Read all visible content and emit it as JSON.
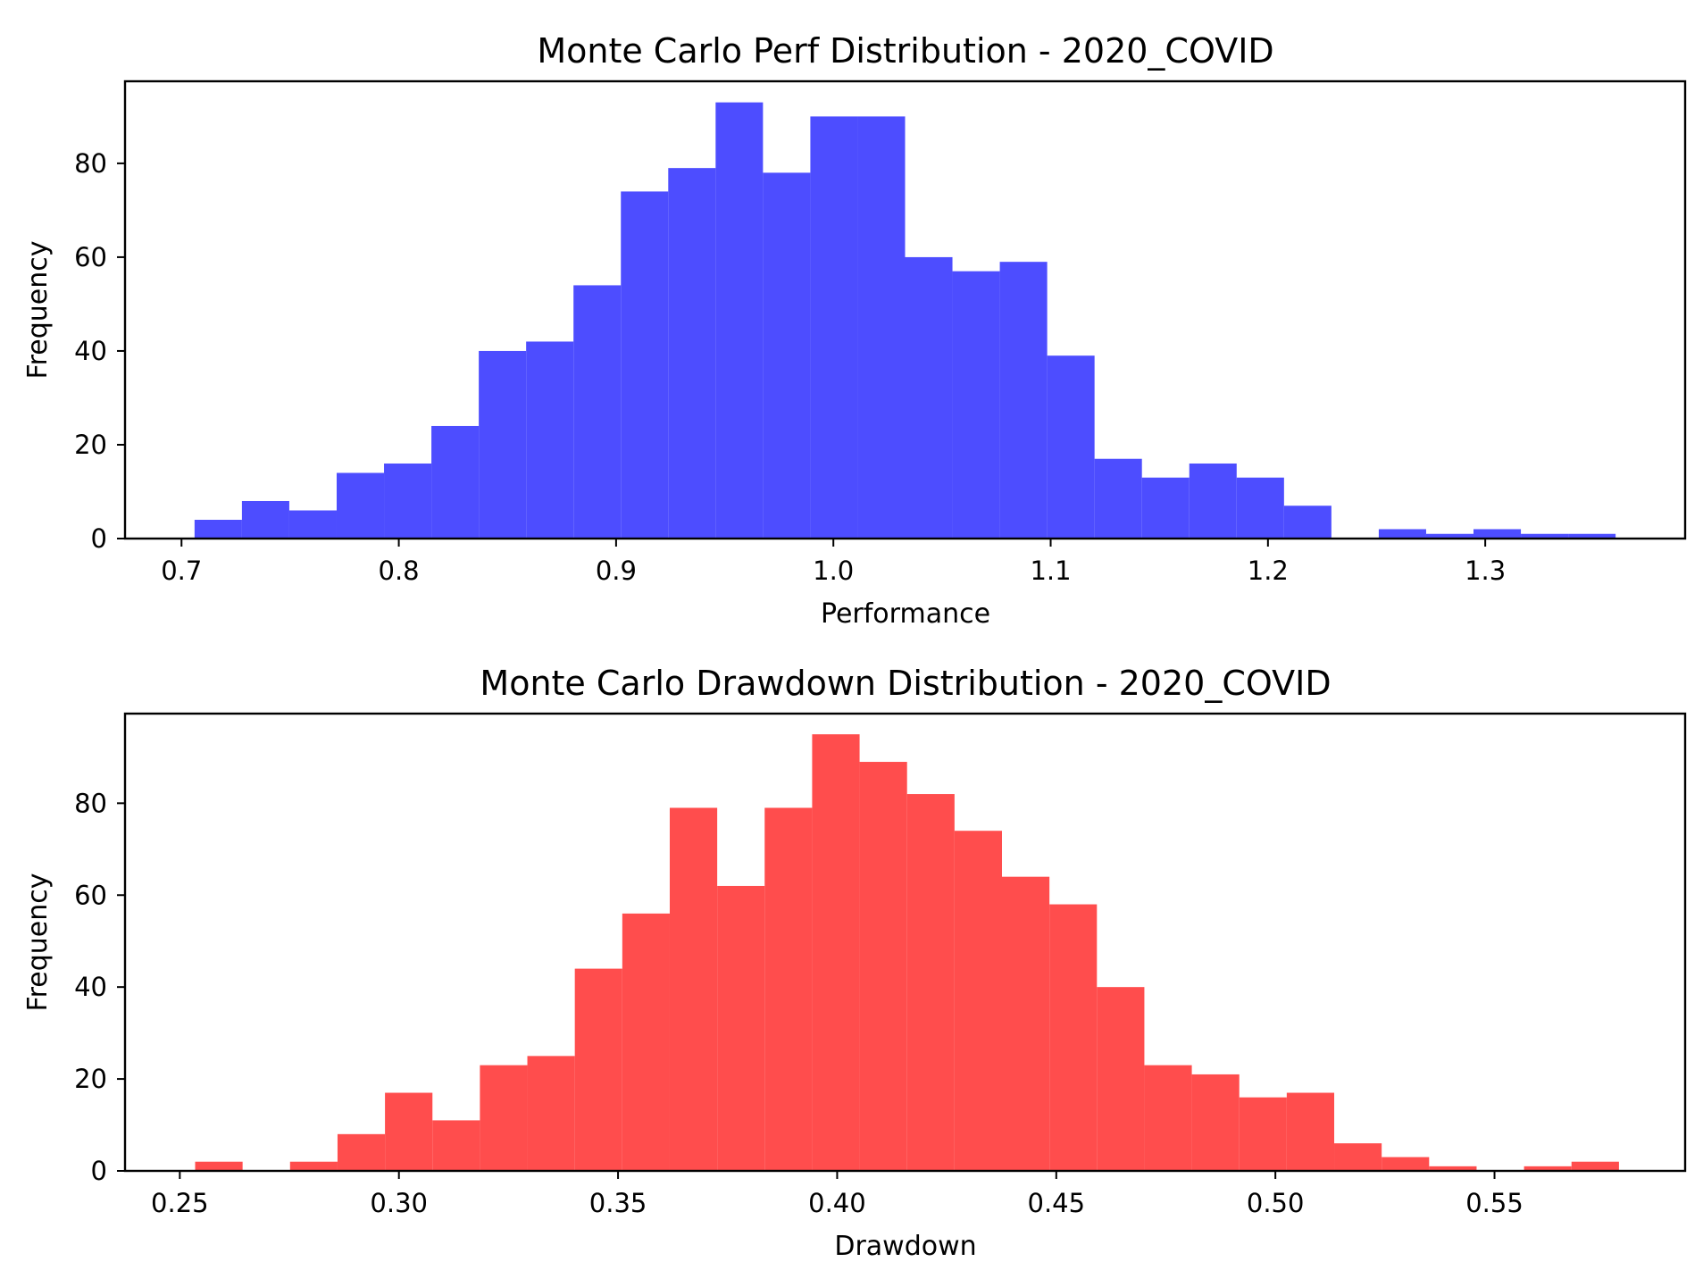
{
  "chart_data": [
    {
      "type": "bar",
      "subtype": "histogram",
      "title": "Monte Carlo Perf Distribution - 2020_COVID",
      "xlabel": "Performance",
      "ylabel": "Frequency",
      "color": "#4d4dff",
      "bin_start": 0.706,
      "bin_width": 0.0218,
      "xlim": [
        0.674,
        1.392
      ],
      "ylim": [
        0,
        97.5
      ],
      "xticks": [
        0.7,
        0.8,
        0.9,
        1.0,
        1.1,
        1.2,
        1.3
      ],
      "xtick_labels": [
        "0.7",
        "0.8",
        "0.9",
        "1.0",
        "1.1",
        "1.2",
        "1.3"
      ],
      "yticks": [
        0,
        20,
        40,
        60,
        80
      ],
      "ytick_labels": [
        "0",
        "20",
        "40",
        "60",
        "80"
      ],
      "values": [
        4,
        8,
        6,
        14,
        16,
        24,
        40,
        42,
        54,
        74,
        79,
        93,
        78,
        90,
        90,
        60,
        57,
        59,
        39,
        17,
        13,
        16,
        13,
        7,
        0,
        2,
        1,
        2,
        1,
        1
      ],
      "grid": false,
      "legend": "none"
    },
    {
      "type": "bar",
      "subtype": "histogram",
      "title": "Monte Carlo Drawdown Distribution - 2020_COVID",
      "xlabel": "Drawdown",
      "ylabel": "Frequency",
      "color": "#ff4d4d",
      "bin_start": 0.2535,
      "bin_width": 0.01083,
      "xlim": [
        0.2375,
        0.5935
      ],
      "ylim": [
        0,
        99.5
      ],
      "xticks": [
        0.25,
        0.3,
        0.35,
        0.4,
        0.45,
        0.5,
        0.55
      ],
      "xtick_labels": [
        "0.25",
        "0.30",
        "0.35",
        "0.40",
        "0.45",
        "0.50",
        "0.55"
      ],
      "yticks": [
        0,
        20,
        40,
        60,
        80
      ],
      "ytick_labels": [
        "0",
        "20",
        "40",
        "60",
        "80"
      ],
      "values": [
        2,
        0,
        2,
        8,
        17,
        11,
        23,
        25,
        44,
        56,
        79,
        62,
        79,
        95,
        89,
        82,
        74,
        64,
        58,
        40,
        23,
        21,
        16,
        17,
        6,
        3,
        1,
        0,
        1,
        2
      ],
      "grid": false,
      "legend": "none"
    }
  ]
}
